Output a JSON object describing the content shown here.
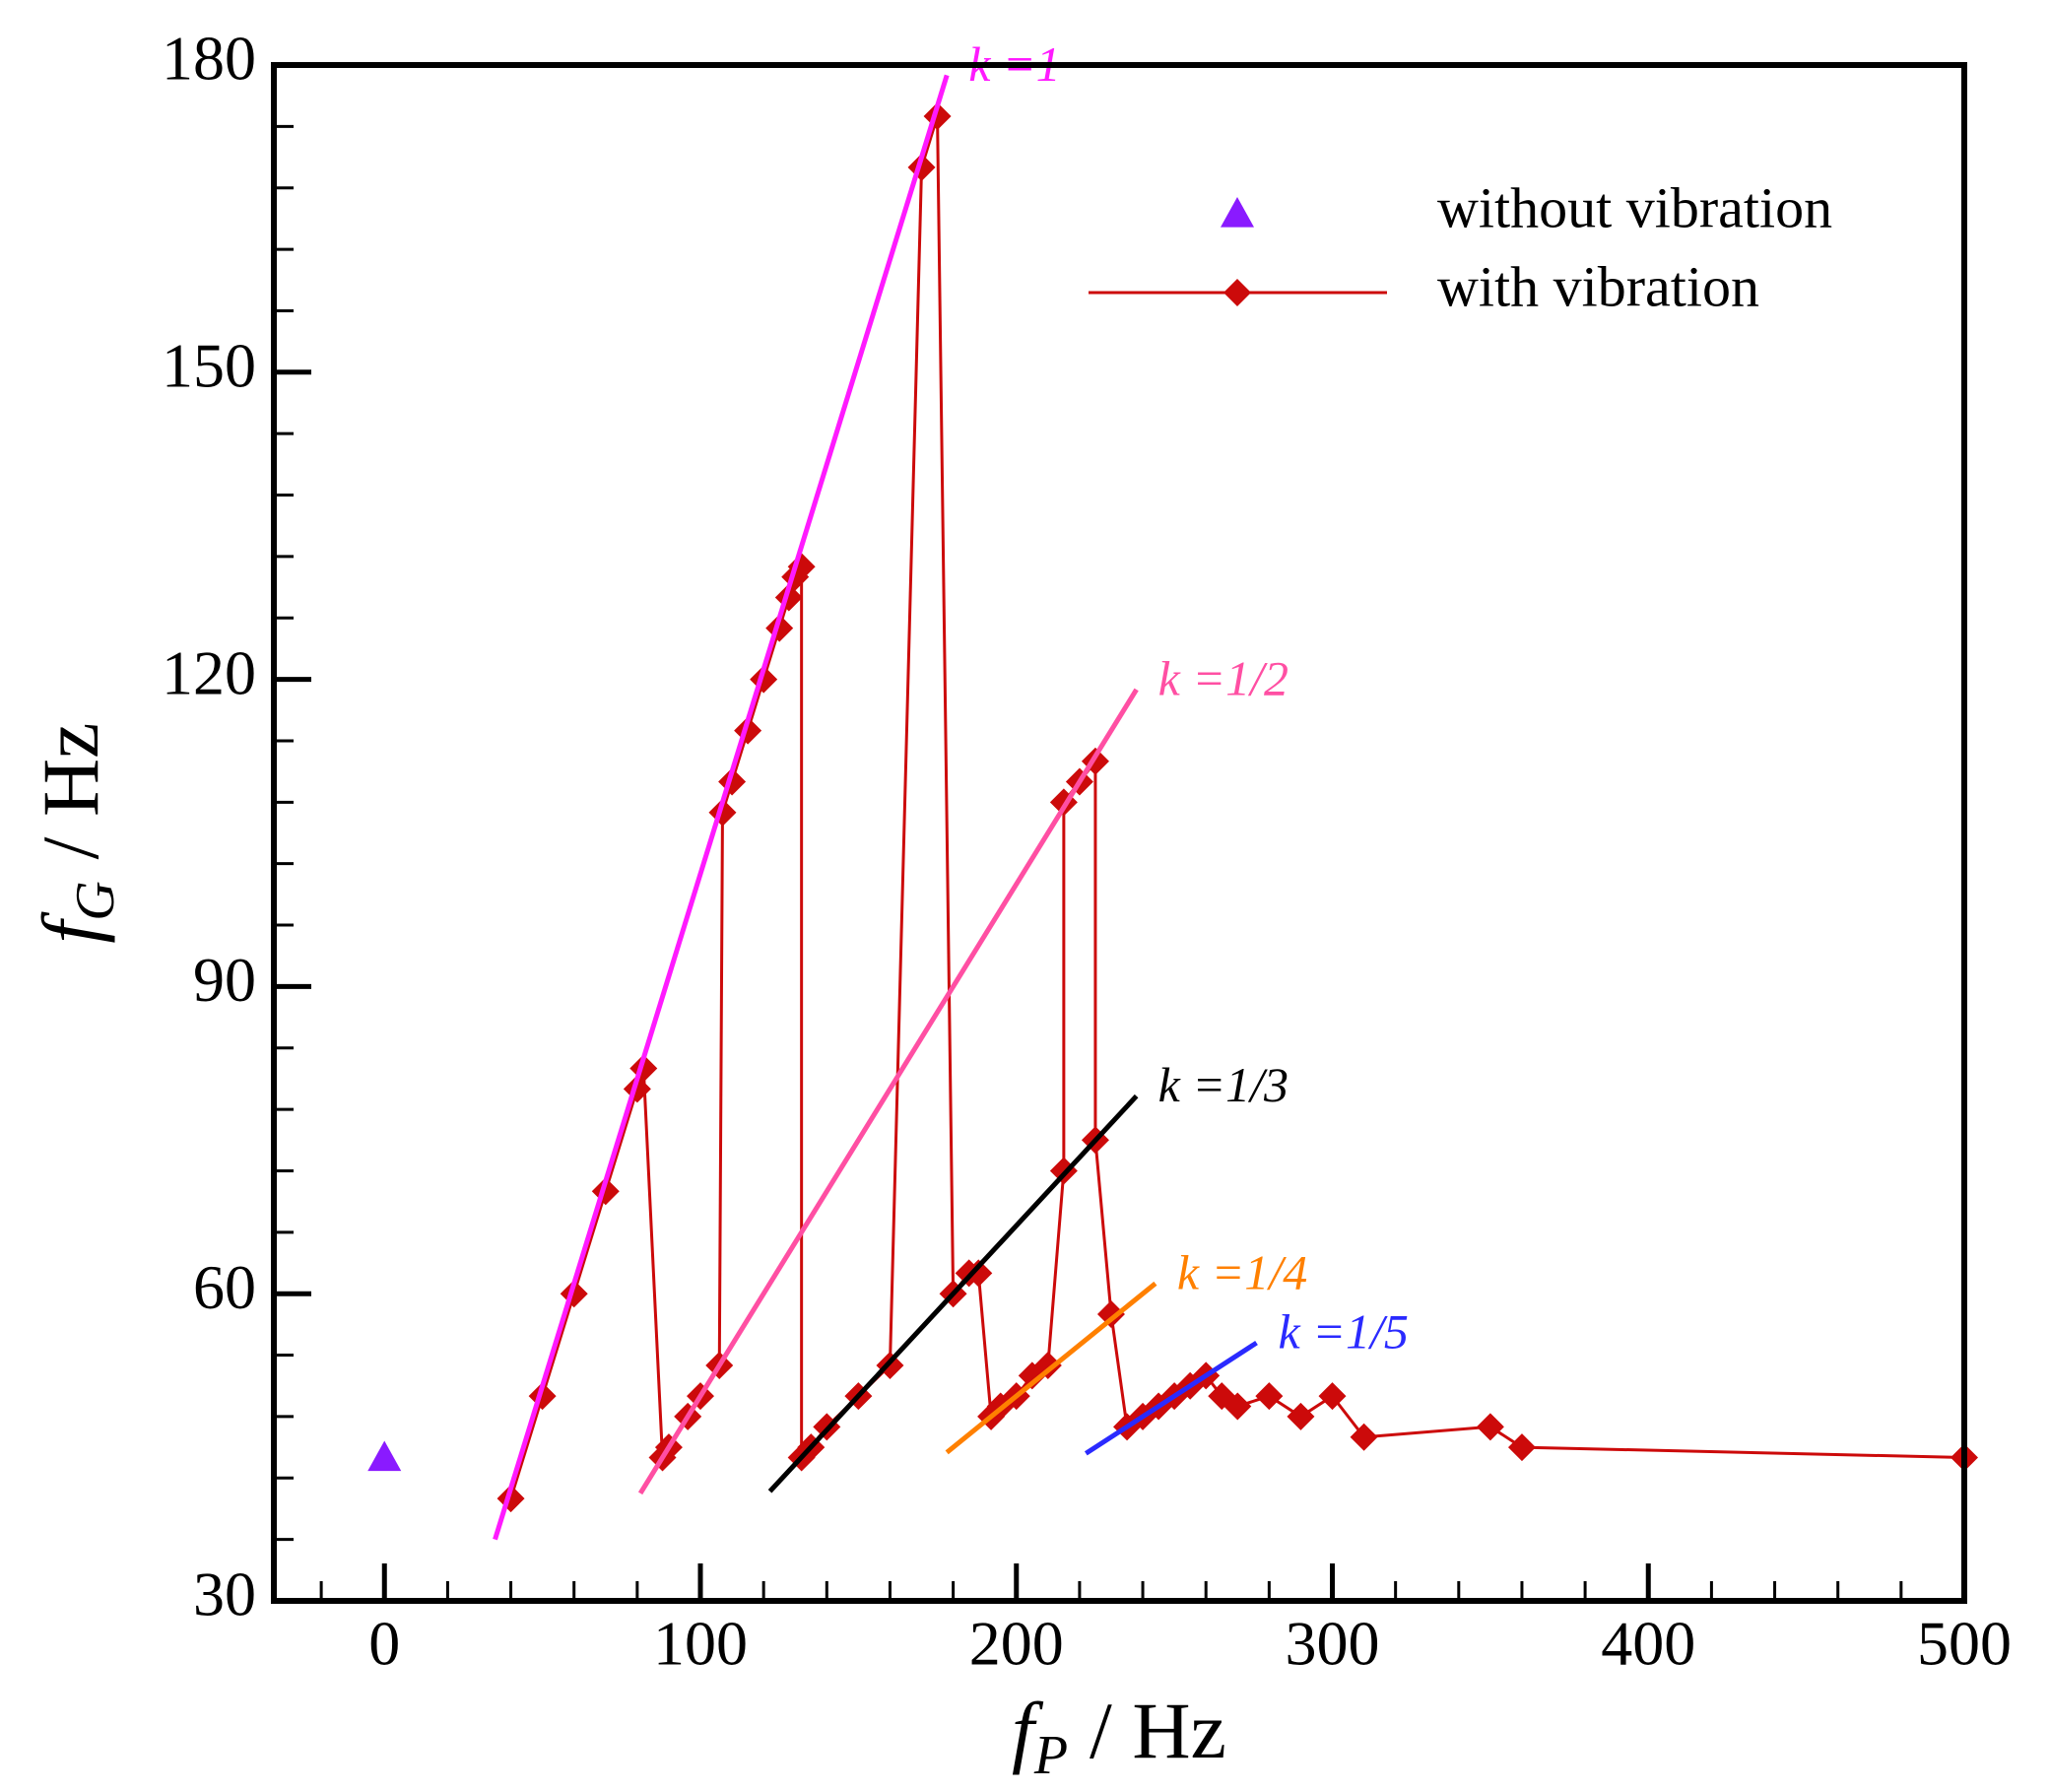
{
  "chart_data": {
    "type": "line",
    "xlabel": {
      "symbol": "f",
      "subscript": "P",
      "rest": "/ Hz"
    },
    "ylabel": {
      "symbol": "f",
      "subscript": "G",
      "rest": "/ Hz"
    },
    "xlim": [
      -35,
      500
    ],
    "ylim": [
      30,
      180
    ],
    "xticks": [
      0,
      100,
      200,
      300,
      400,
      500
    ],
    "yticks": [
      30,
      60,
      90,
      120,
      150,
      180
    ],
    "xminor_ticks": [
      -20,
      20,
      40,
      60,
      80,
      120,
      140,
      160,
      180,
      220,
      240,
      260,
      280,
      320,
      340,
      360,
      380,
      420,
      440,
      460,
      480
    ],
    "yminor_ticks": [
      36,
      42,
      48,
      54,
      66,
      72,
      78,
      84,
      96,
      102,
      108,
      114,
      126,
      132,
      138,
      144,
      156,
      162,
      168,
      174
    ],
    "legend": "upper right",
    "series": [
      {
        "name": "without vibration",
        "color": "#8a1aff",
        "marker": "triangle",
        "line": false,
        "legend": true,
        "x": [
          0
        ],
        "values": [
          44
        ]
      },
      {
        "name": "with vibration",
        "color": "#cc0a0a",
        "marker": "diamond",
        "line": true,
        "legend": true,
        "x": [
          40,
          50,
          60,
          70,
          80,
          82,
          88,
          90,
          96,
          100,
          106,
          107,
          110,
          115,
          120,
          125,
          128,
          130,
          132,
          132,
          135,
          140,
          150,
          160,
          170,
          175,
          180,
          185,
          188,
          192,
          195,
          200,
          205,
          210,
          215,
          215,
          220,
          225,
          225,
          230,
          235,
          240,
          245,
          250,
          255,
          260,
          265,
          270,
          280,
          290,
          300,
          310,
          350,
          360,
          500
        ],
        "values": [
          40,
          50,
          60,
          70,
          80,
          82,
          44,
          45,
          48,
          50,
          53,
          107,
          110,
          115,
          120,
          125,
          128,
          130,
          131,
          44,
          45,
          47,
          50,
          53,
          170,
          175,
          60,
          62,
          62,
          48,
          49,
          50,
          52,
          53,
          72,
          108,
          110,
          112,
          75,
          58,
          47,
          48,
          49,
          50,
          51,
          52,
          50,
          49,
          50,
          48,
          50,
          46,
          47,
          45,
          44
        ]
      },
      {
        "name": "k =1",
        "color": "#ff1aff",
        "marker": "none",
        "line": true,
        "legend": false,
        "label_at_end": true,
        "x": [
          35,
          178
        ],
        "values": [
          36,
          179
        ]
      },
      {
        "name": "k =1/2",
        "color": "#ff4fa3",
        "marker": "none",
        "line": true,
        "legend": false,
        "label_at_end": true,
        "x": [
          81,
          238
        ],
        "values": [
          40.5,
          119
        ]
      },
      {
        "name": "k =1/3",
        "color": "#000000",
        "marker": "none",
        "line": true,
        "legend": false,
        "label_at_end": true,
        "x": [
          122,
          238
        ],
        "values": [
          40.7,
          79.3
        ]
      },
      {
        "name": "k =1/4",
        "color": "#ff8000",
        "marker": "none",
        "line": true,
        "legend": false,
        "label_at_end": true,
        "x": [
          178,
          244
        ],
        "values": [
          44.5,
          61
        ]
      },
      {
        "name": "k =1/5",
        "color": "#2a2aff",
        "marker": "none",
        "line": true,
        "legend": false,
        "label_at_end": true,
        "x": [
          222,
          276
        ],
        "values": [
          44.4,
          55.2
        ]
      }
    ]
  }
}
